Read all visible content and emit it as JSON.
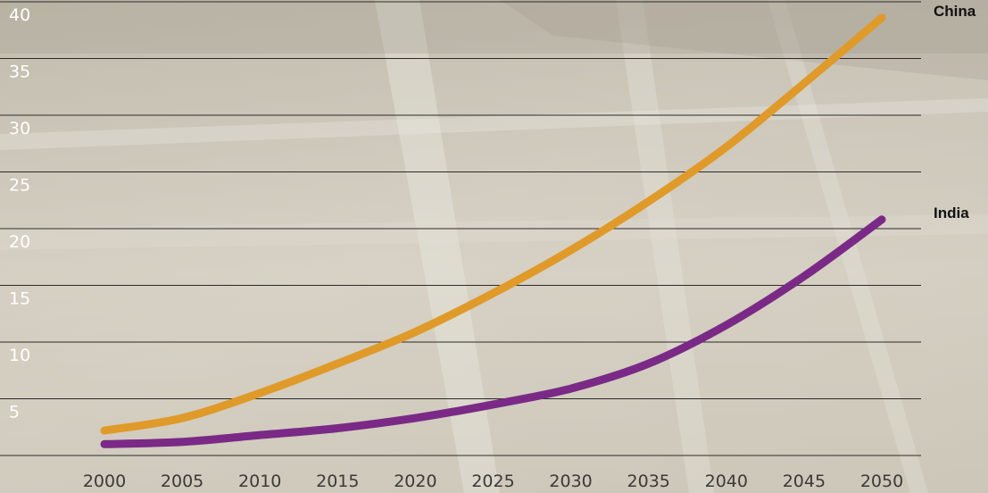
{
  "colors": {
    "china": "#e09a2a",
    "india": "#7a2a86",
    "grid": "#2b2b2b",
    "background": "#cdc8bb"
  },
  "chart_data": {
    "type": "line",
    "title": "",
    "xlabel": "",
    "ylabel": "",
    "x": [
      2000,
      2005,
      2010,
      2015,
      2020,
      2025,
      2030,
      2035,
      2040,
      2045,
      2050
    ],
    "xticks": [
      "2000",
      "2005",
      "2010",
      "2015",
      "2020",
      "2025",
      "2030",
      "2035",
      "2040",
      "2045",
      "2050"
    ],
    "yticks": [
      "5",
      "10",
      "15",
      "20",
      "25",
      "30",
      "35",
      "40"
    ],
    "ylim": [
      0,
      40
    ],
    "xlim": [
      1998,
      2058
    ],
    "grid": true,
    "series": [
      {
        "name": "China",
        "color": "#e09a2a",
        "values": [
          2.2,
          3.3,
          5.5,
          8.1,
          10.9,
          14.3,
          18.1,
          22.4,
          27.2,
          32.8,
          38.6
        ]
      },
      {
        "name": "India",
        "color": "#7a2a86",
        "values": [
          1.0,
          1.2,
          1.8,
          2.4,
          3.3,
          4.5,
          5.9,
          8.1,
          11.5,
          15.8,
          20.8
        ]
      }
    ]
  }
}
